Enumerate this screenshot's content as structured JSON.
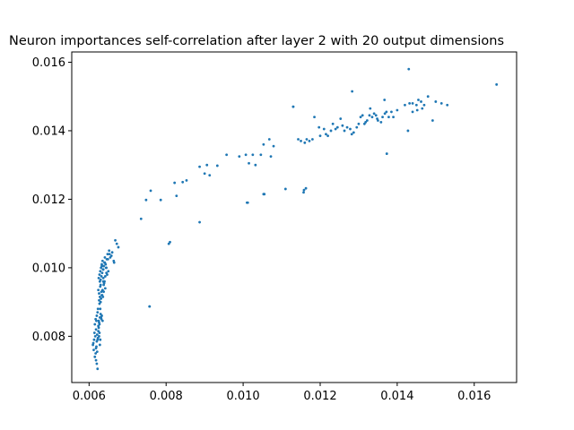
{
  "chart_data": {
    "type": "scatter",
    "title": "Neuron importances self-correlation after layer 2 with 20 output dimensions",
    "xlabel": "",
    "ylabel": "",
    "xlim": [
      0.00555,
      0.0171
    ],
    "ylim": [
      0.00665,
      0.0163
    ],
    "xticks": [
      "0.006",
      "0.008",
      "0.010",
      "0.012",
      "0.014",
      "0.016"
    ],
    "yticks": [
      "0.008",
      "0.010",
      "0.012",
      "0.014",
      "0.016"
    ],
    "grid": false,
    "point_color": "#1f77b4",
    "x": [
      0.0061,
      0.00612,
      0.00615,
      0.00618,
      0.0062,
      0.00622,
      0.00617,
      0.00613,
      0.00619,
      0.00621,
      0.00616,
      0.00614,
      0.0062,
      0.00623,
      0.00618,
      0.00615,
      0.00611,
      0.00619,
      0.00624,
      0.00617,
      0.00621,
      0.00625,
      0.00618,
      0.00622,
      0.00626,
      0.0062,
      0.00624,
      0.00627,
      0.00622,
      0.00628,
      0.00625,
      0.0063,
      0.00623,
      0.00627,
      0.00632,
      0.00626,
      0.00629,
      0.00633,
      0.00628,
      0.00631,
      0.00635,
      0.0063,
      0.00634,
      0.00629,
      0.00636,
      0.00632,
      0.00638,
      0.00627,
      0.00631,
      0.00626,
      0.00629,
      0.00624,
      0.00628,
      0.00625,
      0.0063,
      0.00627,
      0.00632,
      0.00629,
      0.00634,
      0.00631,
      0.00636,
      0.00633,
      0.00638,
      0.00635,
      0.0064,
      0.00637,
      0.00642,
      0.00639,
      0.00644,
      0.00641,
      0.00646,
      0.00643,
      0.00648,
      0.0065,
      0.00645,
      0.00652,
      0.00655,
      0.0066,
      0.00664,
      0.00668,
      0.00672,
      0.00676,
      0.00665,
      0.00658,
      0.00653,
      0.00647,
      0.00642,
      0.00638,
      0.00633,
      0.00628,
      0.00633,
      0.00637,
      0.00641,
      0.00645,
      0.00649,
      0.0063,
      0.00626,
      0.00635,
      0.0064,
      0.00637,
      0.00735,
      0.00748,
      0.0076,
      0.00757,
      0.00786,
      0.00807,
      0.00822,
      0.00827,
      0.00843,
      0.00853,
      0.00887,
      0.00887,
      0.009,
      0.00906,
      0.00913,
      0.00933,
      0.00957,
      0.0099,
      0.01007,
      0.01015,
      0.01025,
      0.01032,
      0.01046,
      0.01053,
      0.01068,
      0.01072,
      0.01079,
      0.0101,
      0.01055,
      0.0111,
      0.0113,
      0.01143,
      0.0115,
      0.0116,
      0.01165,
      0.01172,
      0.0118,
      0.01185,
      0.01197,
      0.012,
      0.0121,
      0.01215,
      0.0122,
      0.01228,
      0.01233,
      0.0124,
      0.01245,
      0.01253,
      0.01258,
      0.01263,
      0.0127,
      0.01278,
      0.01282,
      0.01287,
      0.01295,
      0.013,
      0.01305,
      0.0131,
      0.01318,
      0.01322,
      0.0133,
      0.01335,
      0.0134,
      0.01345,
      0.0135,
      0.01358,
      0.01362,
      0.01368,
      0.01372,
      0.01378,
      0.01315,
      0.01328,
      0.01348,
      0.01367,
      0.01385,
      0.0139,
      0.014,
      0.0142,
      0.01432,
      0.0144,
      0.0145,
      0.01455,
      0.01462,
      0.0147,
      0.0148,
      0.01492,
      0.015,
      0.01515,
      0.0153,
      0.01428,
      0.0144,
      0.01452,
      0.01465,
      0.01373,
      0.01158,
      0.01157,
      0.01163,
      0.00757,
      0.0081,
      0.01012,
      0.01053,
      0.0113,
      0.01283,
      0.0143,
      0.01658
    ],
    "y": [
      0.00775,
      0.0076,
      0.0074,
      0.0073,
      0.0072,
      0.00705,
      0.0075,
      0.0079,
      0.0077,
      0.00755,
      0.008,
      0.0081,
      0.00785,
      0.00795,
      0.0082,
      0.00835,
      0.0078,
      0.00845,
      0.00815,
      0.0085,
      0.00805,
      0.00825,
      0.00765,
      0.0079,
      0.0084,
      0.0086,
      0.0083,
      0.0081,
      0.0087,
      0.00855,
      0.00845,
      0.00865,
      0.0088,
      0.00835,
      0.0085,
      0.008,
      0.0079,
      0.0086,
      0.00775,
      0.00855,
      0.00845,
      0.009,
      0.0092,
      0.0088,
      0.00915,
      0.0093,
      0.0095,
      0.00895,
      0.0091,
      0.00925,
      0.00945,
      0.00935,
      0.0096,
      0.0097,
      0.00965,
      0.0098,
      0.00975,
      0.0099,
      0.00985,
      0.01,
      0.00995,
      0.0101,
      0.01005,
      0.0102,
      0.01015,
      0.0096,
      0.00975,
      0.00955,
      0.01,
      0.0103,
      0.01025,
      0.0101,
      0.0104,
      0.0099,
      0.01,
      0.0105,
      0.0103,
      0.01045,
      0.0102,
      0.0108,
      0.0107,
      0.0106,
      0.01015,
      0.01035,
      0.0104,
      0.0098,
      0.0094,
      0.0093,
      0.0092,
      0.00915,
      0.01005,
      0.00995,
      0.01015,
      0.00985,
      0.01025,
      0.0095,
      0.00905,
      0.00935,
      0.0096,
      0.0097,
      0.01143,
      0.01198,
      0.01225,
      0.00887,
      0.01198,
      0.0107,
      0.01248,
      0.0121,
      0.0125,
      0.01255,
      0.01295,
      0.01133,
      0.01275,
      0.013,
      0.0127,
      0.01298,
      0.0133,
      0.01325,
      0.0133,
      0.01305,
      0.0133,
      0.013,
      0.0133,
      0.0136,
      0.01375,
      0.01325,
      0.01355,
      0.0119,
      0.01215,
      0.0123,
      0.0147,
      0.01375,
      0.0137,
      0.01365,
      0.01375,
      0.0137,
      0.01375,
      0.0144,
      0.0141,
      0.01385,
      0.01405,
      0.0139,
      0.01385,
      0.014,
      0.0142,
      0.01405,
      0.0141,
      0.01435,
      0.01415,
      0.014,
      0.0141,
      0.01405,
      0.0139,
      0.01395,
      0.0141,
      0.0142,
      0.0144,
      0.01445,
      0.01425,
      0.0143,
      0.01465,
      0.0144,
      0.0145,
      0.01445,
      0.0143,
      0.01425,
      0.0144,
      0.0145,
      0.01455,
      0.0144,
      0.0142,
      0.01445,
      0.01435,
      0.0149,
      0.01455,
      0.0144,
      0.0146,
      0.01475,
      0.0148,
      0.0148,
      0.01475,
      0.0149,
      0.01485,
      0.01475,
      0.015,
      0.0143,
      0.01485,
      0.0148,
      0.01475,
      0.014,
      0.01455,
      0.0146,
      0.01465,
      0.01333,
      0.01227,
      0.0122,
      0.01232,
      0.00887,
      0.01075,
      0.0119,
      0.01215,
      0.0147,
      0.01515,
      0.0158,
      0.01535
    ]
  }
}
